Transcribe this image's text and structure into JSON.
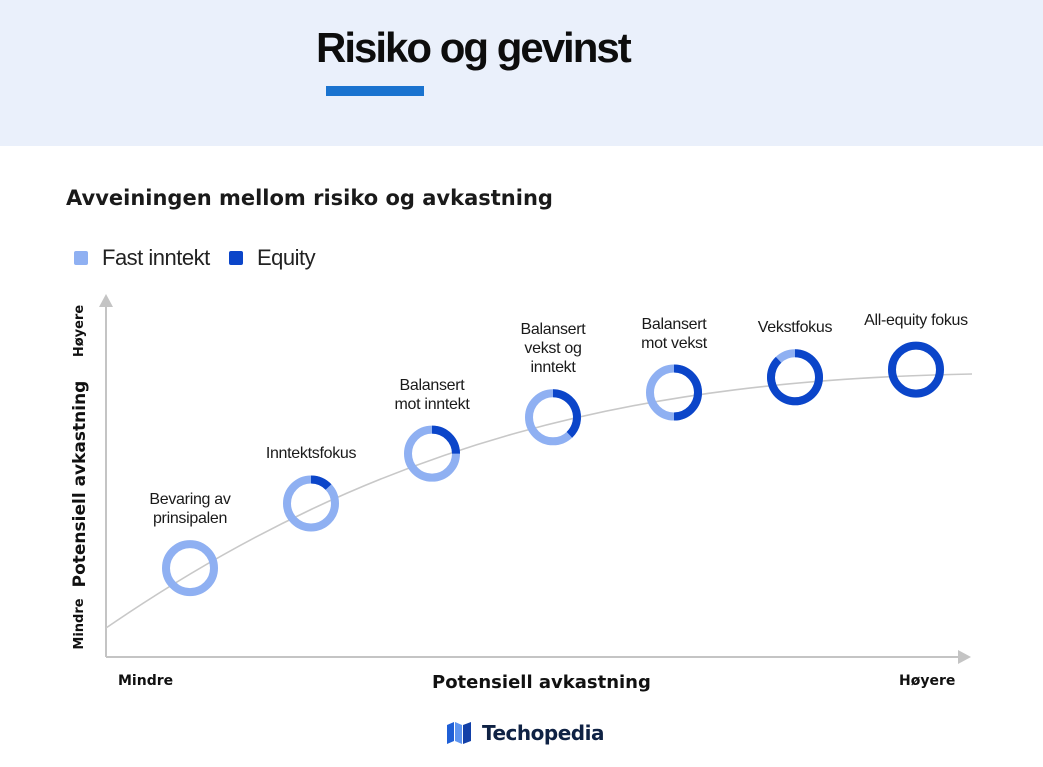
{
  "header": {
    "title": "Risiko og gevinst"
  },
  "colors": {
    "fixed_income": "#8fb0f2",
    "equity": "#0b45c9",
    "header_bg": "#eaf0fb",
    "accent": "#1a73cf",
    "axis": "#c4c4c4"
  },
  "brand": {
    "name": "Techopedia",
    "logo_icon": "techopedia-logo-icon"
  },
  "chart_data": {
    "type": "scatter",
    "title": "Avveiningen mellom risiko og avkastning",
    "legend": {
      "placement": "top-left",
      "entries": [
        "Fast inntekt",
        "Equity"
      ]
    },
    "xlabel": "Potensiell avkastning",
    "ylabel": "Potensiell avkastning",
    "x_axis_ends": [
      "Mindre",
      "Høyere"
    ],
    "y_axis_ends": [
      "Mindre",
      "Høyere"
    ],
    "grid": false,
    "series": [
      {
        "name": "Fast inntekt",
        "values": [
          100,
          87,
          75,
          62,
          50,
          12,
          0
        ]
      },
      {
        "name": "Equity",
        "values": [
          0,
          13,
          25,
          38,
          50,
          88,
          100
        ]
      }
    ],
    "points": [
      {
        "label": "Bevaring av prinsipalen",
        "label_lines": [
          "Bevaring av",
          "prinsipalen"
        ],
        "x": 1,
        "y": 1,
        "equity_share": 0
      },
      {
        "label": "Inntektsfokus",
        "label_lines": [
          "Inntektsfokus"
        ],
        "x": 2,
        "y": 2,
        "equity_share": 0.13
      },
      {
        "label": "Balansert mot inntekt",
        "label_lines": [
          "Balansert",
          "mot inntekt"
        ],
        "x": 3,
        "y": 3,
        "equity_share": 0.25
      },
      {
        "label": "Balansert vekst og inntekt",
        "label_lines": [
          "Balansert",
          "vekst og",
          "inntekt"
        ],
        "x": 4,
        "y": 4,
        "equity_share": 0.38
      },
      {
        "label": "Balansert mot vekst",
        "label_lines": [
          "Balansert",
          "mot vekst"
        ],
        "x": 5,
        "y": 5,
        "equity_share": 0.5
      },
      {
        "label": "Vekstfokus",
        "label_lines": [
          "Vekstfokus"
        ],
        "x": 6,
        "y": 6,
        "equity_share": 0.88
      },
      {
        "label": "All-equity fokus",
        "label_lines": [
          "All-equity fokus"
        ],
        "x": 7,
        "y": 7,
        "equity_share": 1
      }
    ]
  }
}
